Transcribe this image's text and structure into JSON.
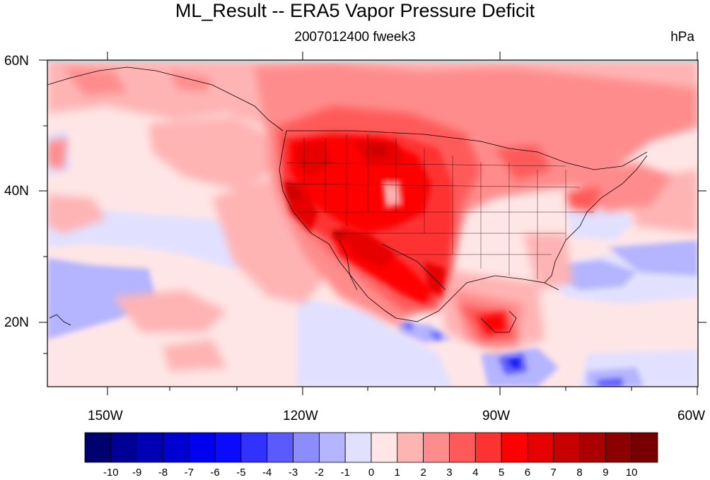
{
  "title": "ML_Result -- ERA5 Vapor Pressure Deficit",
  "subtitle_center": "2007012400 fweek3",
  "subtitle_right": "hPa",
  "lat_labels": [
    "60N",
    "40N",
    "20N"
  ],
  "lon_labels": [
    "150W",
    "120W",
    "90W",
    "60W"
  ],
  "colorbar": {
    "labels": [
      "-10",
      "-9",
      "-8",
      "-7",
      "-6",
      "-5",
      "-4",
      "-3",
      "-2",
      "-1",
      "0",
      "1",
      "2",
      "3",
      "4",
      "5",
      "6",
      "7",
      "8",
      "9",
      "10"
    ],
    "colors": [
      "#00006e",
      "#000096",
      "#0000b4",
      "#0000d2",
      "#0000f0",
      "#0a0aff",
      "#3232ff",
      "#5a5aff",
      "#8c8cff",
      "#b4b4ff",
      "#e1e1ff",
      "#ffe6e6",
      "#ffb4b4",
      "#ff8c8c",
      "#ff5a5a",
      "#ff3232",
      "#ff0000",
      "#e60000",
      "#c80000",
      "#aa0000",
      "#8c0000",
      "#780000"
    ]
  },
  "map_extent": {
    "lon_min": -160,
    "lon_max": -60,
    "lat_min": 10,
    "lat_max": 60
  }
}
